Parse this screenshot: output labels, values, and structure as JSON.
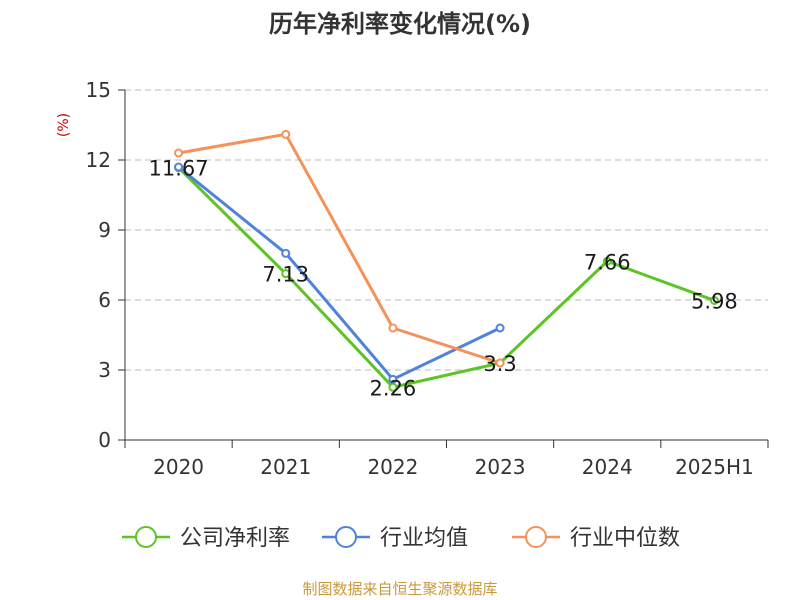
{
  "chart_data": {
    "type": "line",
    "title": "历年净利率变化情况(%)",
    "ylabel": "(%)",
    "xlabel": "",
    "categories": [
      "2020",
      "2021",
      "2022",
      "2023",
      "2024",
      "2025H1"
    ],
    "ylim": [
      0,
      15
    ],
    "yticks": [
      0,
      3,
      6,
      9,
      12,
      15
    ],
    "grid": true,
    "legend_position": "bottom",
    "series": [
      {
        "name": "公司净利率",
        "color": "#5cc424",
        "values": [
          11.67,
          7.13,
          2.26,
          3.3,
          7.66,
          5.98
        ],
        "labels": [
          "11.67",
          "7.13",
          "2.26",
          "3.3",
          "7.66",
          "5.98"
        ]
      },
      {
        "name": "行业均值",
        "color": "#4e82dc",
        "values": [
          11.7,
          8.0,
          2.6,
          4.8,
          null,
          null
        ]
      },
      {
        "name": "行业中位数",
        "color": "#f5925a",
        "values": [
          12.3,
          13.1,
          4.8,
          3.3,
          null,
          null
        ]
      }
    ]
  },
  "source": "制图数据来自恒生聚源数据库"
}
